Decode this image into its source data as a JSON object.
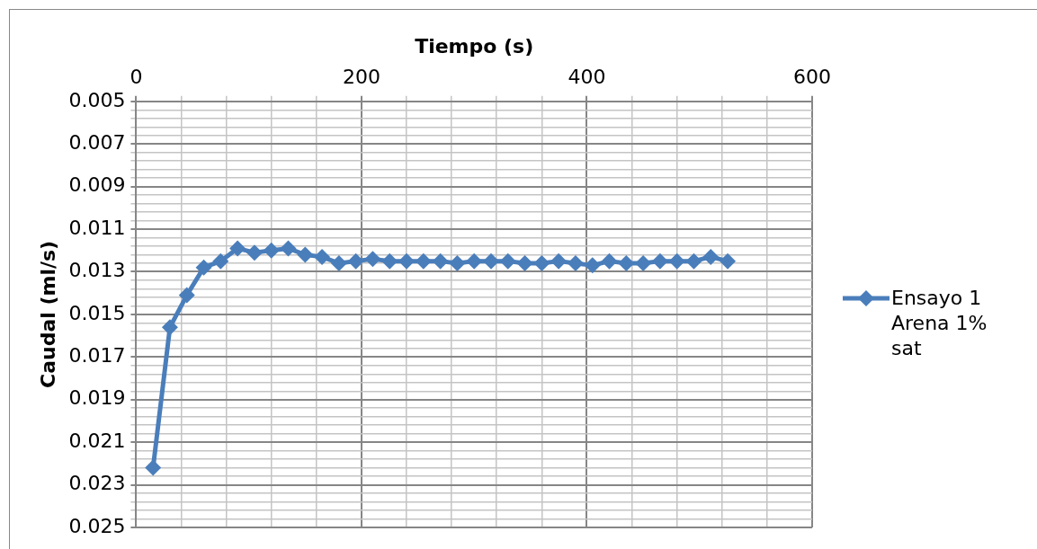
{
  "chart_data": {
    "type": "line",
    "xlabel": "Tiempo (s)",
    "ylabel": "Caudal (ml/s)",
    "x": [
      15,
      30,
      45,
      60,
      75,
      90,
      105,
      120,
      135,
      150,
      165,
      180,
      195,
      210,
      225,
      240,
      255,
      270,
      285,
      300,
      315,
      330,
      345,
      360,
      375,
      390,
      405,
      420,
      435,
      450,
      465,
      480,
      495,
      510,
      525
    ],
    "series": [
      {
        "name": "Ensayo 1 Arena 1% sat",
        "color": "#4a7ebb",
        "values": [
          0.0222,
          0.0156,
          0.0141,
          0.0128,
          0.0125,
          0.0119,
          0.0121,
          0.012,
          0.0119,
          0.0122,
          0.0123,
          0.0126,
          0.0125,
          0.0124,
          0.0125,
          0.0125,
          0.0125,
          0.0125,
          0.0126,
          0.0125,
          0.0125,
          0.0125,
          0.0126,
          0.0126,
          0.0125,
          0.0126,
          0.0127,
          0.0125,
          0.0126,
          0.0126,
          0.0125,
          0.0125,
          0.0125,
          0.0123,
          0.0125
        ]
      }
    ],
    "xlim": [
      0,
      600
    ],
    "xticks": [
      0,
      {
        "value": 40,
        "label": null
      },
      {
        "value": 80,
        "label": null
      },
      {
        "value": 120,
        "label": null
      },
      {
        "value": 160,
        "label": null
      },
      200,
      {
        "value": 240,
        "label": null
      },
      {
        "value": 280,
        "label": null
      },
      {
        "value": 320,
        "label": null
      },
      {
        "value": 360,
        "label": null
      },
      400,
      {
        "value": 440,
        "label": null
      },
      {
        "value": 480,
        "label": null
      },
      {
        "value": 520,
        "label": null
      },
      {
        "value": 560,
        "label": null
      },
      600
    ],
    "ylim": [
      0.025,
      0.005
    ],
    "yticks": [
      {
        "value": 0.005,
        "label": "0.005"
      },
      {
        "value": 0.0054,
        "label": null
      },
      {
        "value": 0.0058,
        "label": null
      },
      {
        "value": 0.0062,
        "label": null
      },
      {
        "value": 0.0066,
        "label": null
      },
      {
        "value": 0.007,
        "label": "0.007"
      },
      {
        "value": 0.0074,
        "label": null
      },
      {
        "value": 0.0078,
        "label": null
      },
      {
        "value": 0.0082,
        "label": null
      },
      {
        "value": 0.0086,
        "label": null
      },
      {
        "value": 0.009,
        "label": "0.009"
      },
      {
        "value": 0.0094,
        "label": null
      },
      {
        "value": 0.0098,
        "label": null
      },
      {
        "value": 0.0102,
        "label": null
      },
      {
        "value": 0.0106,
        "label": null
      },
      {
        "value": 0.011,
        "label": "0.011"
      },
      {
        "value": 0.0114,
        "label": null
      },
      {
        "value": 0.0118,
        "label": null
      },
      {
        "value": 0.0122,
        "label": null
      },
      {
        "value": 0.0126,
        "label": null
      },
      {
        "value": 0.013,
        "label": "0.013"
      },
      {
        "value": 0.0134,
        "label": null
      },
      {
        "value": 0.0138,
        "label": null
      },
      {
        "value": 0.0142,
        "label": null
      },
      {
        "value": 0.0146,
        "label": null
      },
      {
        "value": 0.015,
        "label": "0.015"
      },
      {
        "value": 0.0154,
        "label": null
      },
      {
        "value": 0.0158,
        "label": null
      },
      {
        "value": 0.0162,
        "label": null
      },
      {
        "value": 0.0166,
        "label": null
      },
      {
        "value": 0.017,
        "label": "0.017"
      },
      {
        "value": 0.0174,
        "label": null
      },
      {
        "value": 0.0178,
        "label": null
      },
      {
        "value": 0.0182,
        "label": null
      },
      {
        "value": 0.0186,
        "label": null
      },
      {
        "value": 0.019,
        "label": "0.019"
      },
      {
        "value": 0.0194,
        "label": null
      },
      {
        "value": 0.0198,
        "label": null
      },
      {
        "value": 0.0202,
        "label": null
      },
      {
        "value": 0.0206,
        "label": null
      },
      {
        "value": 0.021,
        "label": "0.021"
      },
      {
        "value": 0.0214,
        "label": null
      },
      {
        "value": 0.0218,
        "label": null
      },
      {
        "value": 0.0222,
        "label": null
      },
      {
        "value": 0.0226,
        "label": null
      },
      {
        "value": 0.023,
        "label": "0.023"
      },
      {
        "value": 0.0234,
        "label": null
      },
      {
        "value": 0.0238,
        "label": null
      },
      {
        "value": 0.0242,
        "label": null
      },
      {
        "value": 0.0246,
        "label": null
      },
      {
        "value": 0.025,
        "label": "0.025"
      }
    ],
    "grid": true,
    "legend": "right",
    "marker": "diamond",
    "line_style": "solid"
  }
}
